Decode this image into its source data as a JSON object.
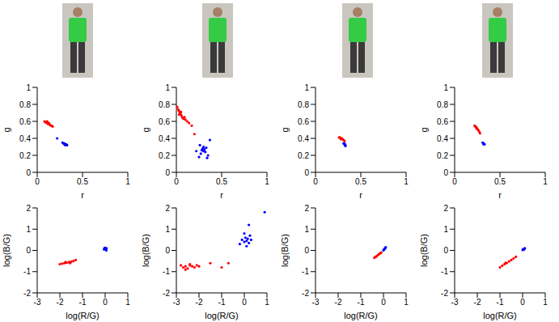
{
  "chart_data": [
    {
      "type": "scatter",
      "x_label": "r",
      "y_label": "g",
      "xlim": [
        0,
        1
      ],
      "ylim": [
        0,
        1
      ],
      "xticks": [
        0,
        0.5,
        1
      ],
      "yticks": [
        0,
        0.2,
        0.4,
        0.6,
        0.8,
        1
      ],
      "marker": "dot",
      "series": [
        {
          "color": "#ff0000",
          "x": [
            0.08,
            0.09,
            0.1,
            0.11,
            0.12,
            0.13,
            0.14,
            0.15,
            0.16,
            0.17,
            0.11,
            0.13
          ],
          "y": [
            0.6,
            0.59,
            0.59,
            0.58,
            0.57,
            0.57,
            0.56,
            0.55,
            0.55,
            0.54,
            0.6,
            0.58
          ]
        },
        {
          "color": "#0000ff",
          "x": [
            0.22,
            0.28,
            0.29,
            0.3,
            0.31,
            0.32,
            0.33,
            0.3,
            0.31
          ],
          "y": [
            0.4,
            0.35,
            0.34,
            0.34,
            0.33,
            0.33,
            0.32,
            0.33,
            0.32
          ]
        }
      ]
    },
    {
      "type": "scatter",
      "x_label": "r",
      "y_label": "g",
      "xlim": [
        0,
        1
      ],
      "ylim": [
        0,
        1
      ],
      "xticks": [
        0,
        0.5,
        1
      ],
      "yticks": [
        0,
        0.2,
        0.4,
        0.6,
        0.8,
        1
      ],
      "marker": "dot",
      "series": [
        {
          "color": "#ff0000",
          "x": [
            0.01,
            0.02,
            0.03,
            0.04,
            0.05,
            0.06,
            0.07,
            0.08,
            0.1,
            0.12,
            0.03,
            0.05,
            0.09,
            0.14,
            0.17,
            0.2
          ],
          "y": [
            0.77,
            0.74,
            0.72,
            0.7,
            0.68,
            0.66,
            0.64,
            0.63,
            0.62,
            0.6,
            0.68,
            0.71,
            0.65,
            0.58,
            0.55,
            0.45
          ]
        },
        {
          "color": "#0000ff",
          "x": [
            0.25,
            0.27,
            0.28,
            0.29,
            0.3,
            0.31,
            0.32,
            0.33,
            0.35,
            0.37,
            0.3,
            0.26,
            0.34,
            0.22
          ],
          "y": [
            0.18,
            0.22,
            0.26,
            0.28,
            0.25,
            0.27,
            0.24,
            0.29,
            0.2,
            0.38,
            0.3,
            0.32,
            0.17,
            0.25
          ]
        }
      ]
    },
    {
      "type": "scatter",
      "x_label": "r",
      "y_label": "g",
      "xlim": [
        0,
        1
      ],
      "ylim": [
        0,
        1
      ],
      "xticks": [
        0,
        0.5,
        1
      ],
      "yticks": [
        0,
        0.2,
        0.4,
        0.6,
        0.8,
        1
      ],
      "marker": "dot",
      "series": [
        {
          "color": "#ff0000",
          "x": [
            0.26,
            0.27,
            0.28,
            0.29,
            0.3,
            0.31,
            0.32,
            0.28
          ],
          "y": [
            0.41,
            0.41,
            0.4,
            0.4,
            0.39,
            0.38,
            0.37,
            0.39
          ]
        },
        {
          "color": "#0000ff",
          "x": [
            0.31,
            0.32,
            0.33,
            0.32,
            0.33
          ],
          "y": [
            0.34,
            0.33,
            0.32,
            0.34,
            0.31
          ]
        }
      ]
    },
    {
      "type": "scatter",
      "x_label": "r",
      "y_label": "g",
      "xlim": [
        0,
        1
      ],
      "ylim": [
        0,
        1
      ],
      "xticks": [
        0,
        0.5,
        1
      ],
      "yticks": [
        0,
        0.2,
        0.4,
        0.6,
        0.8,
        1
      ],
      "marker": "dot",
      "series": [
        {
          "color": "#ff0000",
          "x": [
            0.22,
            0.23,
            0.24,
            0.25,
            0.26,
            0.27,
            0.28,
            0.24
          ],
          "y": [
            0.55,
            0.54,
            0.52,
            0.51,
            0.5,
            0.48,
            0.46,
            0.53
          ]
        },
        {
          "color": "#0000ff",
          "x": [
            0.31,
            0.32,
            0.33,
            0.32
          ],
          "y": [
            0.35,
            0.34,
            0.33,
            0.33
          ]
        }
      ]
    },
    {
      "type": "scatter",
      "x_label": "log(R/G)",
      "y_label": "log(B/G)",
      "xlim": [
        -3,
        1
      ],
      "ylim": [
        -2,
        2
      ],
      "xticks": [
        -3,
        -2,
        -1,
        0,
        1
      ],
      "yticks": [
        -2,
        -1,
        0,
        1,
        2
      ],
      "marker": "dot",
      "series": [
        {
          "color": "#ff0000",
          "x": [
            -2.0,
            -1.9,
            -1.8,
            -1.7,
            -1.6,
            -1.5,
            -1.4,
            -1.3,
            -1.75,
            -1.55
          ],
          "y": [
            -0.65,
            -0.62,
            -0.6,
            -0.58,
            -0.55,
            -0.53,
            -0.5,
            -0.45,
            -0.55,
            -0.6
          ]
        },
        {
          "color": "#0000ff",
          "x": [
            -0.05,
            0.0,
            0.03,
            0.05,
            -0.02,
            0.02,
            0.06
          ],
          "y": [
            0.05,
            0.1,
            0.05,
            0.0,
            0.12,
            0.08,
            0.1
          ]
        }
      ]
    },
    {
      "type": "scatter",
      "x_label": "log(R/G)",
      "y_label": "log(B/G)",
      "xlim": [
        -3,
        1
      ],
      "ylim": [
        -2,
        2
      ],
      "xticks": [
        -3,
        -2,
        -1,
        0,
        1
      ],
      "yticks": [
        -2,
        -1,
        0,
        1,
        2
      ],
      "marker": "dot",
      "series": [
        {
          "color": "#ff0000",
          "x": [
            -2.8,
            -2.7,
            -2.6,
            -2.5,
            -2.4,
            -2.3,
            -2.2,
            -2.1,
            -2.0,
            -2.6,
            -2.4,
            -1.5,
            -1.0,
            -0.7
          ],
          "y": [
            -0.7,
            -0.8,
            -0.75,
            -0.85,
            -0.7,
            -0.75,
            -0.8,
            -0.7,
            -0.75,
            -0.9,
            -0.65,
            -0.6,
            -0.8,
            -0.6
          ]
        },
        {
          "color": "#0000ff",
          "x": [
            -0.2,
            -0.1,
            0.0,
            0.05,
            0.1,
            0.15,
            0.2,
            0.25,
            0.3,
            0.0,
            0.1,
            0.2,
            0.9
          ],
          "y": [
            0.3,
            0.5,
            0.4,
            0.6,
            0.45,
            0.55,
            0.35,
            0.7,
            0.5,
            0.8,
            0.2,
            1.2,
            1.8
          ]
        }
      ]
    },
    {
      "type": "scatter",
      "x_label": "log(R/G)",
      "y_label": "log(B/G)",
      "xlim": [
        -3,
        1
      ],
      "ylim": [
        -2,
        2
      ],
      "xticks": [
        -3,
        -2,
        -1,
        0,
        1
      ],
      "yticks": [
        -2,
        -1,
        0,
        1,
        2
      ],
      "marker": "dot",
      "series": [
        {
          "color": "#ff0000",
          "x": [
            -0.4,
            -0.35,
            -0.3,
            -0.25,
            -0.2,
            -0.15,
            -0.1
          ],
          "y": [
            -0.35,
            -0.3,
            -0.28,
            -0.22,
            -0.18,
            -0.14,
            -0.1
          ]
        },
        {
          "color": "#0000ff",
          "x": [
            0.0,
            0.03,
            0.06,
            0.08,
            0.1
          ],
          "y": [
            0.0,
            0.05,
            0.08,
            0.12,
            0.15
          ]
        }
      ]
    },
    {
      "type": "scatter",
      "x_label": "log(R/G)",
      "y_label": "log(B/G)",
      "xlim": [
        -3,
        1
      ],
      "ylim": [
        -2,
        2
      ],
      "xticks": [
        -3,
        -2,
        -1,
        0,
        1
      ],
      "yticks": [
        -2,
        -1,
        0,
        1,
        2
      ],
      "marker": "dot",
      "series": [
        {
          "color": "#ff0000",
          "x": [
            -1.0,
            -0.9,
            -0.8,
            -0.7,
            -0.6,
            -0.5,
            -0.4,
            -0.3,
            -0.75
          ],
          "y": [
            -0.8,
            -0.72,
            -0.65,
            -0.6,
            -0.52,
            -0.45,
            -0.38,
            -0.3,
            -0.58
          ]
        },
        {
          "color": "#0000ff",
          "x": [
            0.0,
            0.03,
            0.06,
            0.1
          ],
          "y": [
            0.02,
            0.06,
            0.04,
            0.1
          ]
        }
      ]
    }
  ]
}
